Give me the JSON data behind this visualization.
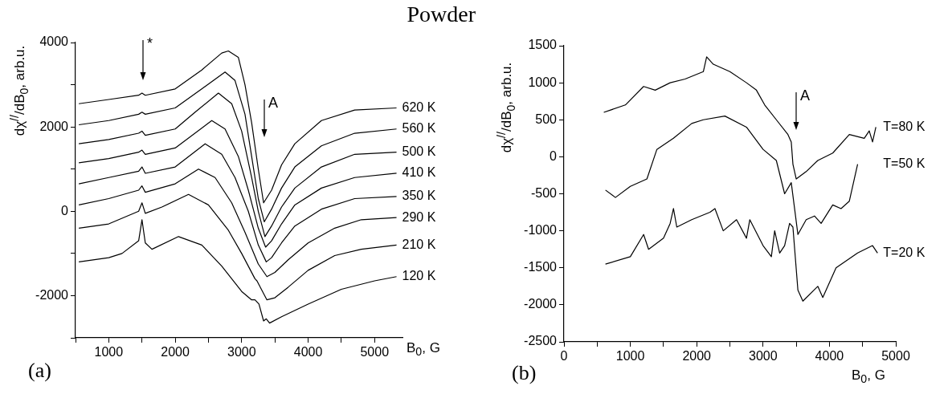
{
  "chart_data": [
    {
      "type": "line",
      "title": "Powder",
      "xlabel": "B$_{0}$, G",
      "ylabel": "dχ$^{//}$/dB$_{0}$, arb.u.",
      "xlim": [
        500,
        5420
      ],
      "xticks": [
        {
          "value": 500,
          "label": null
        },
        1000,
        {
          "value": 1500,
          "label": null
        },
        2000,
        {
          "value": 2500,
          "label": null
        },
        3000,
        {
          "value": 3500,
          "label": null
        },
        4000,
        {
          "value": 4500,
          "label": null
        },
        5000
      ],
      "ylim": [
        -3000,
        4000
      ],
      "yticks": [
        {
          "value": -3000,
          "label": null
        },
        -2000,
        {
          "value": -1000,
          "label": null
        },
        0,
        {
          "value": 1000,
          "label": null
        },
        2000,
        {
          "value": 3000,
          "label": null
        },
        4000
      ],
      "series": [
        {
          "name": "620 K",
          "color": "#000000",
          "x": [
            550,
            1000,
            1450,
            1500,
            1550,
            2000,
            2400,
            2700,
            2800,
            2950,
            3050,
            3150,
            3250,
            3330,
            3450,
            3600,
            3800,
            4200,
            4700,
            5330
          ],
          "values": [
            2550,
            2650,
            2750,
            2800,
            2750,
            2900,
            3350,
            3750,
            3800,
            3650,
            3000,
            2100,
            1000,
            200,
            500,
            1100,
            1600,
            2150,
            2400,
            2450
          ]
        },
        {
          "name": "560 K",
          "color": "#000000",
          "x": [
            550,
            1000,
            1450,
            1500,
            1550,
            2000,
            2400,
            2750,
            2900,
            3050,
            3150,
            3250,
            3340,
            3450,
            3600,
            3800,
            4200,
            4700,
            5330
          ],
          "values": [
            2050,
            2150,
            2300,
            2350,
            2300,
            2450,
            2900,
            3300,
            3100,
            2300,
            1300,
            300,
            -250,
            50,
            550,
            1050,
            1550,
            1850,
            1950
          ]
        },
        {
          "name": "500 K",
          "color": "#000000",
          "x": [
            550,
            1000,
            1450,
            1500,
            1550,
            2000,
            2300,
            2650,
            2850,
            3000,
            3150,
            3250,
            3350,
            3450,
            3600,
            3800,
            4200,
            4700,
            5330
          ],
          "values": [
            1600,
            1700,
            1850,
            1900,
            1800,
            1950,
            2350,
            2800,
            2550,
            1900,
            800,
            0,
            -600,
            -350,
            100,
            550,
            1050,
            1350,
            1400
          ]
        },
        {
          "name": "410 K",
          "color": "#000000",
          "x": [
            550,
            1000,
            1450,
            1500,
            1550,
            2000,
            2550,
            2750,
            2950,
            3100,
            3250,
            3360,
            3450,
            3600,
            3800,
            4200,
            4700,
            5330
          ],
          "values": [
            1150,
            1250,
            1400,
            1450,
            1350,
            1500,
            2150,
            1950,
            1300,
            500,
            -400,
            -850,
            -700,
            -300,
            150,
            550,
            800,
            900
          ]
        },
        {
          "name": "350 K",
          "color": "#000000",
          "x": [
            550,
            1000,
            1450,
            1500,
            1550,
            2000,
            2450,
            2700,
            2900,
            3100,
            3250,
            3370,
            3450,
            3600,
            3800,
            4200,
            4700,
            5330
          ],
          "values": [
            650,
            800,
            950,
            1050,
            900,
            1050,
            1600,
            1350,
            800,
            0,
            -800,
            -1200,
            -1100,
            -750,
            -350,
            50,
            300,
            350
          ]
        },
        {
          "name": "290 K",
          "color": "#000000",
          "x": [
            550,
            1000,
            1450,
            1500,
            1550,
            2000,
            2350,
            2600,
            2850,
            3050,
            3250,
            3380,
            3500,
            3700,
            4000,
            4400,
            4800,
            5330
          ],
          "values": [
            150,
            300,
            500,
            600,
            450,
            650,
            1000,
            800,
            200,
            -500,
            -1250,
            -1550,
            -1450,
            -1150,
            -750,
            -400,
            -200,
            -150
          ]
        },
        {
          "name": "210 K",
          "color": "#000000",
          "x": [
            550,
            1000,
            1450,
            1500,
            1550,
            1800,
            2200,
            2500,
            2800,
            3000,
            3200,
            3230,
            3380,
            3500,
            3700,
            4000,
            4400,
            4800,
            5330
          ],
          "values": [
            -400,
            -300,
            0,
            200,
            -50,
            100,
            400,
            150,
            -450,
            -1000,
            -1600,
            -1650,
            -2100,
            -2050,
            -1800,
            -1400,
            -1050,
            -900,
            -800
          ]
        },
        {
          "name": "120 K",
          "color": "#000000",
          "x": [
            550,
            1000,
            1200,
            1450,
            1500,
            1550,
            1650,
            2050,
            2400,
            2700,
            3000,
            3150,
            3200,
            3260,
            3330,
            3370,
            3420,
            3600,
            4000,
            4500,
            5000,
            5330
          ],
          "values": [
            -1200,
            -1100,
            -1000,
            -700,
            -200,
            -750,
            -900,
            -600,
            -800,
            -1300,
            -1900,
            -2100,
            -2100,
            -2200,
            -2600,
            -2550,
            -2650,
            -2500,
            -2200,
            -1850,
            -1650,
            -1550
          ]
        }
      ],
      "annotations": [
        "(a)",
        "*",
        "A"
      ]
    },
    {
      "type": "line",
      "xlabel": "B$_{0}$, G",
      "ylabel": "dχ$^{//}$/dB$_{0}$, arb.u.",
      "xlim": [
        0,
        5000
      ],
      "xticks": [
        0,
        {
          "value": 500,
          "label": null
        },
        1000,
        {
          "value": 1500,
          "label": null
        },
        2000,
        {
          "value": 2500,
          "label": null
        },
        3000,
        {
          "value": 3500,
          "label": null
        },
        4000,
        {
          "value": 4500,
          "label": null
        },
        5000
      ],
      "ylim": [
        -2500,
        1500
      ],
      "yticks": [
        -2500,
        -2000,
        -1500,
        -1000,
        -500,
        0,
        500,
        1000,
        1500
      ],
      "series": [
        {
          "name": "T=80 K",
          "color": "#000000",
          "x": [
            600,
            925,
            1200,
            1375,
            1600,
            1825,
            2100,
            2150,
            2250,
            2500,
            2750,
            2900,
            3025,
            3200,
            3375,
            3425,
            3450,
            3500,
            3650,
            3825,
            4050,
            4300,
            4525,
            4600,
            4650,
            4700
          ],
          "values": [
            600,
            700,
            950,
            900,
            1000,
            1050,
            1150,
            1350,
            1250,
            1150,
            1000,
            900,
            700,
            500,
            300,
            200,
            -100,
            -300,
            -200,
            -50,
            50,
            300,
            250,
            350,
            200,
            400
          ]
        },
        {
          "name": "T=50 K",
          "color": "#000000",
          "x": [
            625,
            775,
            1000,
            1250,
            1400,
            1650,
            1925,
            2100,
            2425,
            2750,
            3000,
            3200,
            3325,
            3425,
            3475,
            3525,
            3650,
            3775,
            3875,
            4050,
            4175,
            4300,
            4425
          ],
          "values": [
            -450,
            -550,
            -400,
            -300,
            100,
            250,
            450,
            500,
            550,
            400,
            100,
            -50,
            -500,
            -350,
            -700,
            -1050,
            -850,
            -800,
            -900,
            -650,
            -700,
            -600,
            -100
          ]
        },
        {
          "name": "T=20 K",
          "color": "#000000",
          "x": [
            625,
            1000,
            1200,
            1275,
            1500,
            1600,
            1650,
            1700,
            1925,
            2200,
            2275,
            2400,
            2600,
            2750,
            2800,
            3000,
            3125,
            3175,
            3250,
            3325,
            3400,
            3450,
            3525,
            3600,
            3825,
            3900,
            4100,
            4425,
            4650,
            4725
          ],
          "values": [
            -1450,
            -1350,
            -1050,
            -1250,
            -1100,
            -900,
            -700,
            -950,
            -850,
            -750,
            -700,
            -1000,
            -850,
            -1100,
            -850,
            -1200,
            -1350,
            -1000,
            -1300,
            -1200,
            -900,
            -950,
            -1800,
            -1950,
            -1750,
            -1900,
            -1500,
            -1300,
            -1200,
            -1300
          ]
        }
      ],
      "annotations": [
        "(b)",
        "A"
      ]
    }
  ]
}
